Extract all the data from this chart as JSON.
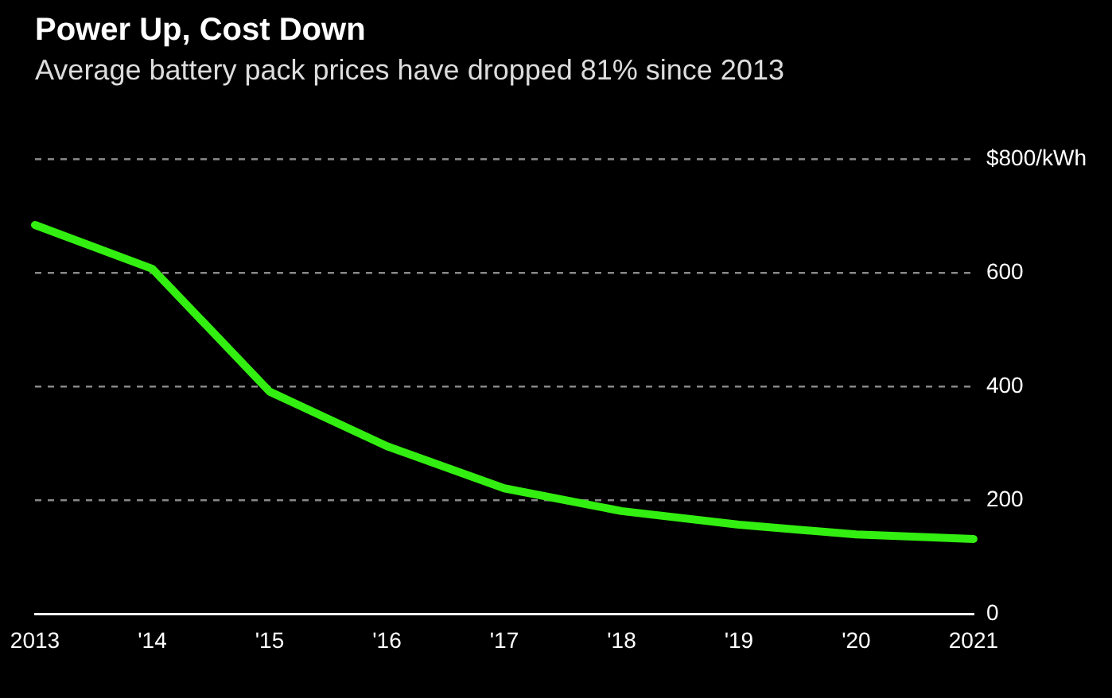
{
  "chart_data": {
    "type": "line",
    "title": "Power Up, Cost Down",
    "subtitle": "Average battery pack prices have dropped 81% since 2013",
    "categories": [
      "2013",
      "'14",
      "'15",
      "'16",
      "'17",
      "'18",
      "'19",
      "'20",
      "2021"
    ],
    "values": [
      684,
      607,
      391,
      295,
      221,
      181,
      157,
      140,
      132
    ],
    "color": "#33ee11",
    "marker": "none",
    "ylim": [
      0,
      800
    ],
    "yticks": [
      0,
      200,
      400,
      600,
      {
        "value": 800,
        "label": "$800/kWh"
      }
    ],
    "grid": "y"
  }
}
